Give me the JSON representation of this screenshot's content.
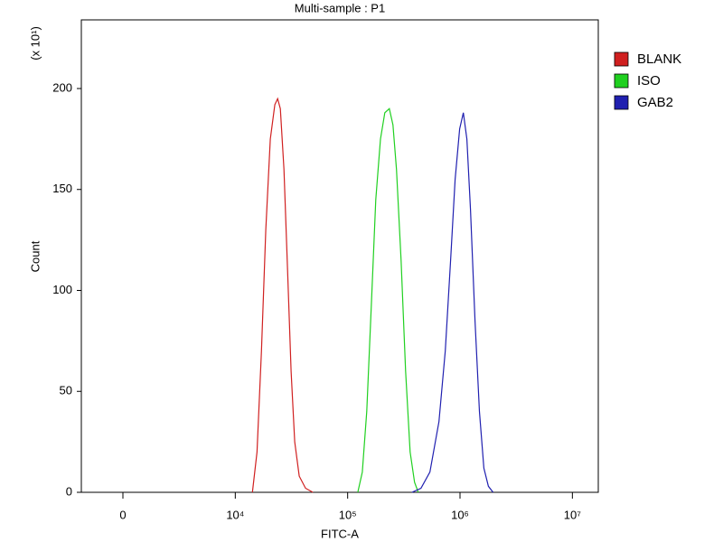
{
  "chart_data": {
    "type": "line",
    "title": "Multi-sample : P1",
    "xlabel": "FITC-A",
    "ylabel": "Count",
    "y_multiplier": "(x 10¹)",
    "xscale": "biexponential",
    "xlim": [
      -3700,
      17000000
    ],
    "xticks": [
      {
        "value": 0,
        "label": "0"
      },
      {
        "value": 10000,
        "label": "10⁴"
      },
      {
        "value": 100000,
        "label": "10⁵"
      },
      {
        "value": 1000000,
        "label": "10⁶"
      },
      {
        "value": 10000000,
        "label": "10⁷"
      }
    ],
    "ylim": [
      0,
      234
    ],
    "yticks": [
      0,
      50,
      100,
      150,
      200
    ],
    "legend": "right",
    "series": [
      {
        "name": "BLANK",
        "color": "#d02020",
        "x": [
          14200,
          15600,
          17100,
          18700,
          20500,
          22500,
          23800,
          25200,
          27100,
          29200,
          31400,
          33800,
          37100,
          42200,
          49000
        ],
        "values": [
          0,
          20,
          70,
          130,
          175,
          192,
          195,
          190,
          160,
          110,
          60,
          25,
          8,
          2,
          0
        ]
      },
      {
        "name": "ISO",
        "color": "#20d020",
        "x": [
          123000,
          135000,
          148000,
          163000,
          178000,
          196000,
          214000,
          235000,
          253000,
          272000,
          299000,
          328000,
          360000,
          394000,
          425000
        ],
        "values": [
          0,
          10,
          40,
          95,
          145,
          175,
          188,
          190,
          182,
          160,
          115,
          60,
          20,
          5,
          0
        ]
      },
      {
        "name": "GAB2",
        "color": "#2020b0",
        "x": [
          373000,
          449000,
          540000,
          649000,
          739000,
          825000,
          905000,
          993000,
          1070000,
          1150000,
          1240000,
          1360000,
          1490000,
          1630000,
          1790000,
          1970000
        ],
        "values": [
          0,
          2,
          10,
          35,
          70,
          115,
          155,
          180,
          188,
          175,
          140,
          85,
          40,
          12,
          3,
          0
        ]
      }
    ]
  }
}
